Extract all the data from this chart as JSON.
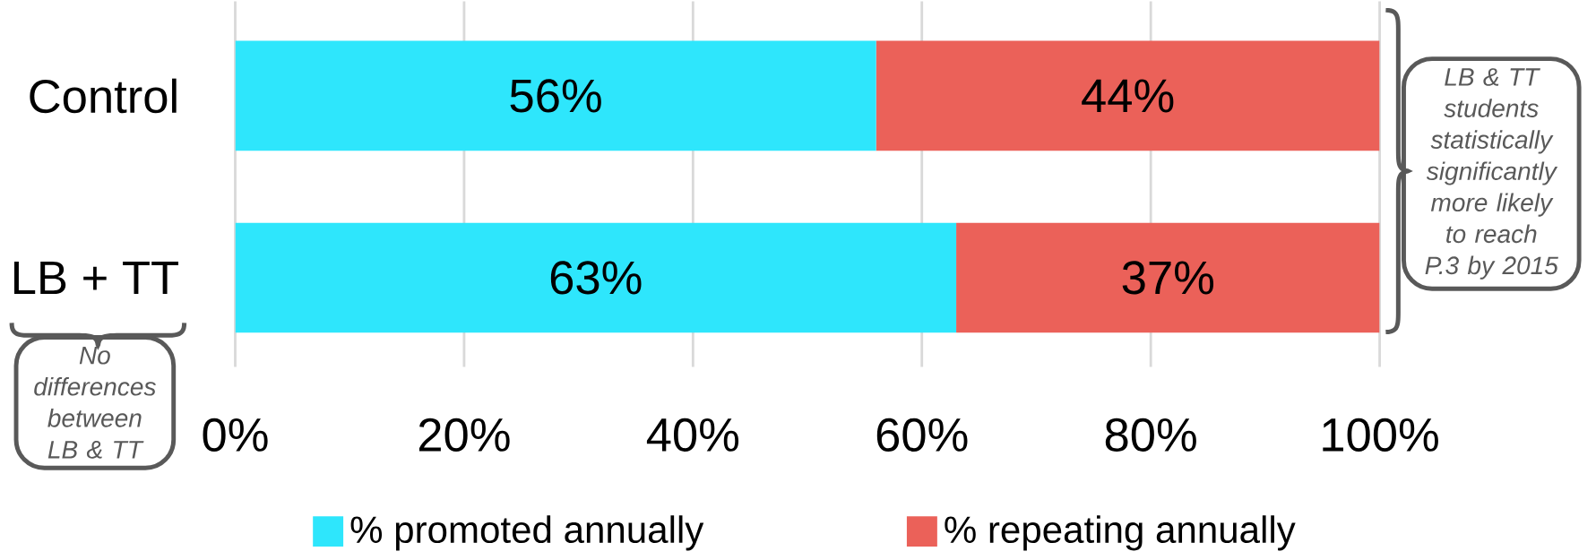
{
  "chart_data": {
    "type": "bar",
    "orientation": "horizontal",
    "stacked": true,
    "categories": [
      "Control",
      "LB + TT"
    ],
    "series": [
      {
        "name": "% promoted annually",
        "color": "#2ee6fc",
        "values": [
          56,
          63
        ],
        "value_labels": [
          "56%",
          "63%"
        ]
      },
      {
        "name": "% repeating annually",
        "color": "#eb6159",
        "values": [
          44,
          37
        ],
        "value_labels": [
          "44%",
          "37%"
        ]
      }
    ],
    "xlim": [
      0,
      100
    ],
    "xticks": [
      {
        "value": 0,
        "label": "0%"
      },
      {
        "value": 20,
        "label": "20%"
      },
      {
        "value": 40,
        "label": "40%"
      },
      {
        "value": 60,
        "label": "60%"
      },
      {
        "value": 80,
        "label": "80%"
      },
      {
        "value": 100,
        "label": "100%"
      }
    ],
    "grid": "x",
    "legend": "bottom",
    "annotations": [
      "LB & TT students statistically significantly more likely to reach P.3 by 2015",
      "No differences between LB & TT"
    ]
  }
}
